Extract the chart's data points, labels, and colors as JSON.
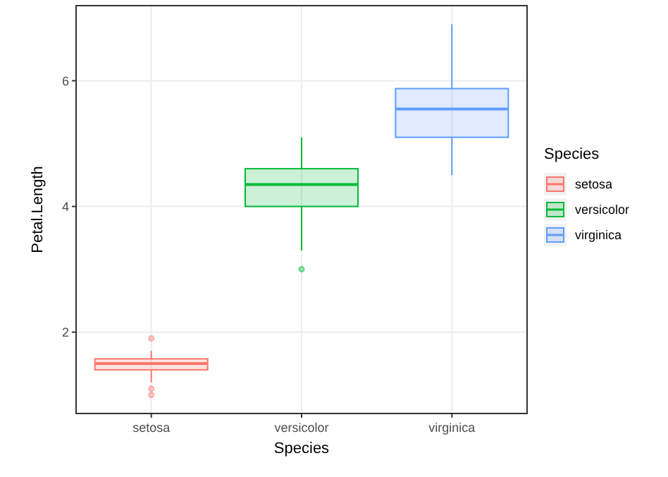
{
  "chart_data": {
    "type": "box",
    "xlabel": "Species",
    "ylabel": "Petal.Length",
    "legend_title": "Species",
    "legend": "right",
    "grid": true,
    "categories": [
      "setosa",
      "versicolor",
      "virginica"
    ],
    "series": [
      {
        "name": "setosa",
        "color": "#f8766d",
        "boxes": [
          {
            "low": 1.2,
            "q1": 1.4,
            "median": 1.5,
            "q3": 1.575,
            "high": 1.7,
            "outliers": [
              1.0,
              1.1,
              1.9
            ]
          },
          null,
          null
        ]
      },
      {
        "name": "versicolor",
        "color": "#00ba38",
        "boxes": [
          null,
          {
            "low": 3.3,
            "q1": 4.0,
            "median": 4.35,
            "q3": 4.6,
            "high": 5.1,
            "outliers": [
              3.0
            ]
          },
          null
        ]
      },
      {
        "name": "virginica",
        "color": "#619cff",
        "boxes": [
          null,
          null,
          {
            "low": 4.5,
            "q1": 5.1,
            "median": 5.55,
            "q3": 5.875,
            "high": 6.9
          }
        ]
      }
    ],
    "ylim": [
      0.705,
      7.195
    ],
    "yticks": [
      2,
      4,
      6
    ]
  }
}
